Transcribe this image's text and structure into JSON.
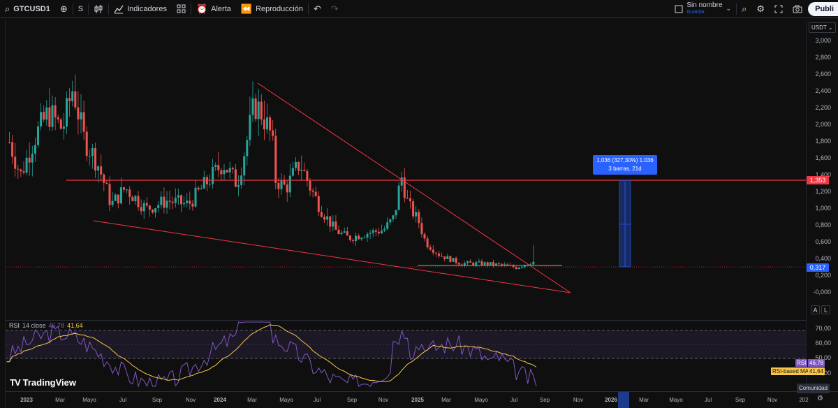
{
  "toolbar": {
    "symbol": "GTCUSD1",
    "interval": "S",
    "indicators": "Indicadores",
    "alert": "Alerta",
    "replay": "Reproducción",
    "layout_name": "Sin nombre",
    "layout_save": "Guardar",
    "publish": "Publi"
  },
  "price_axis": {
    "currency": "USDT",
    "ticks": [
      "3,000",
      "2,800",
      "2,600",
      "2,400",
      "2,200",
      "2,000",
      "1,800",
      "1,600",
      "1,400",
      "1,200",
      "1,000",
      "0,800",
      "0,600",
      "0,400",
      "0,200",
      "-0,000"
    ],
    "resistance_label": "1,353",
    "last_price_label": "0,317",
    "resistance_color": "#f23645",
    "last_price_color": "#2962ff"
  },
  "measure": {
    "line1": "1,036 (327,30%) 1.036",
    "line2": "3 barras, 21d"
  },
  "scale_buttons": {
    "auto": "A",
    "log": "L"
  },
  "rsi": {
    "name": "RSI",
    "params": "14 close",
    "value": "46,78",
    "ma_value": "41,64",
    "ticks": [
      "70,00",
      "60,00",
      "50,00",
      "40,00"
    ],
    "tag_rsi_label": "RSI",
    "tag_rsi_value": "46,78",
    "tag_ma_label": "RSI-based MA",
    "tag_ma_value": "41,64",
    "rsi_color": "#7e57c2",
    "ma_color": "#f7c548"
  },
  "time_axis": {
    "labels": [
      "2023",
      "Mar",
      "Mayo",
      "Jul",
      "Sep",
      "Nov",
      "2024",
      "Mar",
      "Mayo",
      "Jul",
      "Sep",
      "Nov",
      "2025",
      "Mar",
      "Mayo",
      "Jul",
      "Sep",
      "Nov",
      "2026",
      "Mar",
      "Mayo",
      "Jul",
      "Sep",
      "Nov",
      "202"
    ]
  },
  "watermark": "TradingView",
  "community": "Comunidad",
  "colors": {
    "bull": "#26a69a",
    "bear": "#ef5350",
    "background": "#0f0f0f"
  }
}
